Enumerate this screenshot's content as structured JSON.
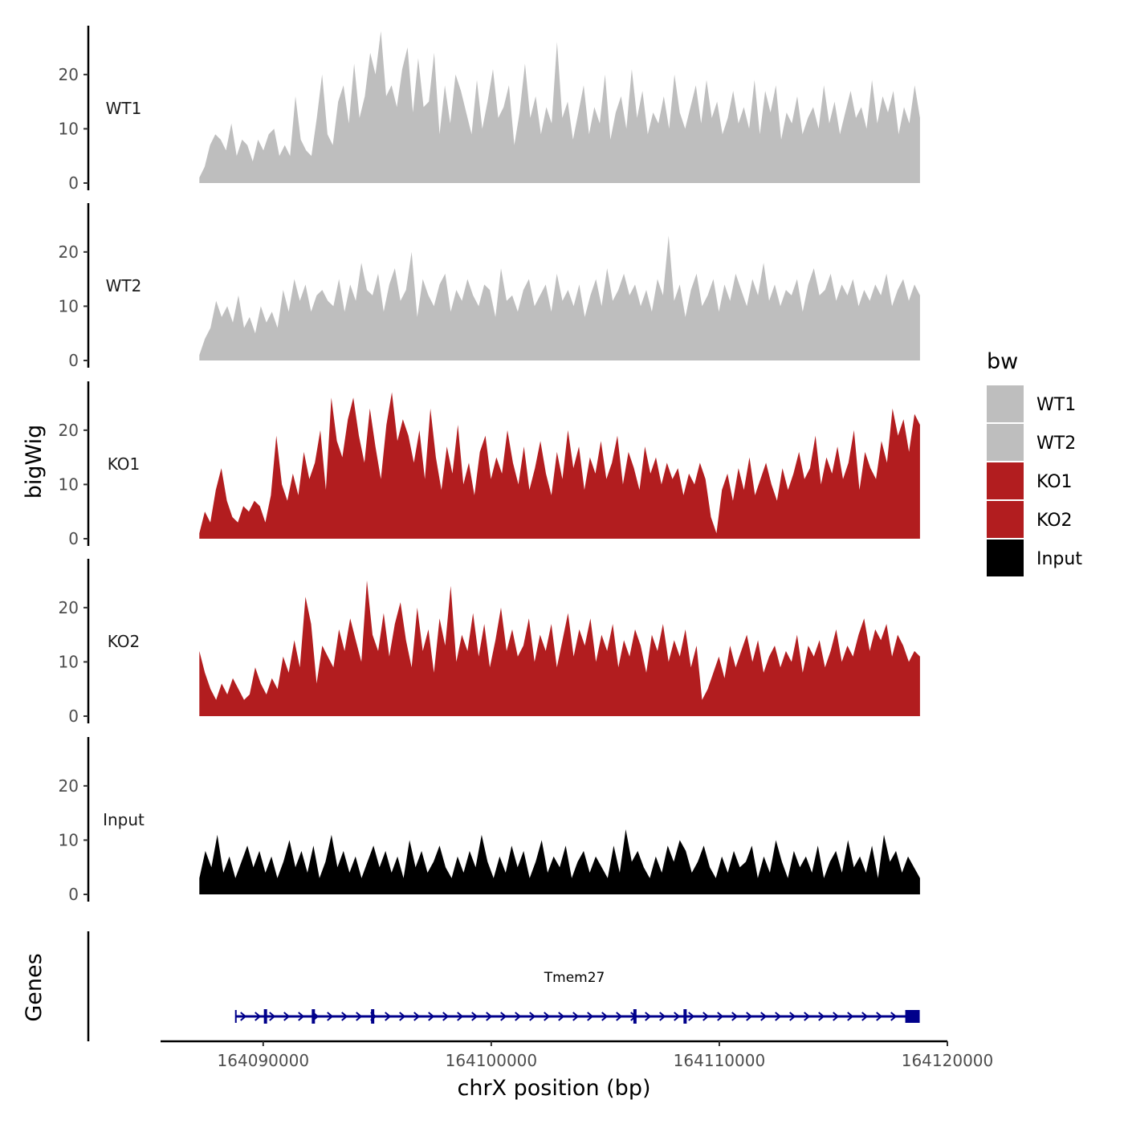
{
  "chart_data": {
    "type": "area",
    "ylabel": "bigWig",
    "xlabel": "chrX position (bp)",
    "xlim": [
      164085500,
      164120000
    ],
    "x_ticks": [
      164090000,
      164100000,
      164110000,
      164120000
    ],
    "x_tick_labels": [
      "164090000",
      "164100000",
      "164110000",
      "164120000"
    ],
    "data_x_range": [
      164087200,
      164118800
    ],
    "ylim": [
      0,
      29
    ],
    "y_ticks": [
      0,
      10,
      20
    ],
    "y_tick_labels": [
      "0",
      "10",
      "20"
    ],
    "legend": {
      "title": "bw",
      "placement": "right",
      "entries": [
        {
          "name": "WT1",
          "color": "#bebebe"
        },
        {
          "name": "WT2",
          "color": "#bebebe"
        },
        {
          "name": "KO1",
          "color": "#b21d1f"
        },
        {
          "name": "KO2",
          "color": "#b21d1f"
        },
        {
          "name": "Input",
          "color": "#000000"
        }
      ]
    },
    "series": [
      {
        "name": "WT1",
        "color": "#bebebe",
        "values": [
          1,
          3,
          7,
          9,
          8,
          6,
          11,
          5,
          8,
          7,
          4,
          8,
          6,
          9,
          10,
          5,
          7,
          5,
          16,
          8,
          6,
          5,
          12,
          20,
          9,
          7,
          15,
          18,
          11,
          22,
          12,
          16,
          24,
          20,
          28,
          16,
          18,
          14,
          21,
          25,
          13,
          23,
          14,
          15,
          24,
          9,
          18,
          11,
          20,
          17,
          13,
          9,
          19,
          10,
          15,
          21,
          12,
          14,
          18,
          7,
          13,
          22,
          12,
          16,
          9,
          14,
          11,
          26,
          12,
          15,
          8,
          13,
          18,
          9,
          14,
          11,
          20,
          8,
          13,
          16,
          10,
          21,
          12,
          17,
          9,
          13,
          11,
          16,
          10,
          20,
          13,
          10,
          14,
          18,
          11,
          19,
          12,
          15,
          9,
          12,
          17,
          11,
          14,
          10,
          19,
          9,
          17,
          13,
          18,
          8,
          13,
          11,
          16,
          9,
          12,
          14,
          10,
          18,
          11,
          15,
          9,
          13,
          17,
          12,
          14,
          10,
          19,
          11,
          16,
          13,
          17,
          9,
          14,
          11,
          18,
          12
        ]
      },
      {
        "name": "WT2",
        "color": "#bebebe",
        "values": [
          1,
          4,
          6,
          11,
          8,
          10,
          7,
          12,
          6,
          8,
          5,
          10,
          7,
          9,
          6,
          13,
          9,
          15,
          11,
          14,
          9,
          12,
          13,
          11,
          10,
          15,
          9,
          14,
          11,
          18,
          13,
          12,
          16,
          9,
          14,
          17,
          11,
          13,
          20,
          8,
          15,
          12,
          10,
          14,
          16,
          9,
          13,
          11,
          15,
          12,
          10,
          14,
          13,
          8,
          17,
          11,
          12,
          9,
          13,
          15,
          10,
          12,
          14,
          9,
          16,
          11,
          13,
          10,
          14,
          8,
          12,
          15,
          10,
          17,
          11,
          13,
          16,
          12,
          14,
          10,
          13,
          9,
          15,
          12,
          23,
          11,
          14,
          8,
          13,
          16,
          10,
          12,
          15,
          9,
          14,
          11,
          16,
          13,
          10,
          15,
          12,
          18,
          11,
          14,
          10,
          13,
          12,
          15,
          9,
          14,
          17,
          12,
          13,
          16,
          11,
          14,
          12,
          15,
          10,
          13,
          11,
          14,
          12,
          16,
          10,
          13,
          15,
          11,
          14,
          12
        ]
      },
      {
        "name": "KO1",
        "color": "#b21d1f",
        "values": [
          1,
          5,
          3,
          9,
          13,
          7,
          4,
          3,
          6,
          5,
          7,
          6,
          3,
          8,
          19,
          10,
          7,
          12,
          8,
          16,
          11,
          14,
          20,
          9,
          26,
          18,
          15,
          22,
          26,
          19,
          14,
          24,
          17,
          11,
          21,
          27,
          18,
          22,
          19,
          14,
          20,
          11,
          24,
          15,
          9,
          17,
          12,
          21,
          10,
          14,
          8,
          16,
          19,
          11,
          15,
          12,
          20,
          14,
          10,
          17,
          9,
          13,
          18,
          12,
          8,
          16,
          11,
          20,
          13,
          17,
          9,
          15,
          12,
          18,
          11,
          14,
          19,
          10,
          16,
          13,
          9,
          17,
          12,
          15,
          10,
          14,
          11,
          13,
          8,
          12,
          10,
          14,
          11,
          4,
          1,
          9,
          12,
          7,
          13,
          9,
          15,
          8,
          11,
          14,
          10,
          7,
          13,
          9,
          12,
          16,
          11,
          13,
          19,
          10,
          15,
          12,
          17,
          11,
          14,
          20,
          9,
          16,
          13,
          11,
          18,
          14,
          24,
          19,
          22,
          16,
          23,
          21
        ]
      },
      {
        "name": "KO2",
        "color": "#b21d1f",
        "values": [
          12,
          8,
          5,
          3,
          6,
          4,
          7,
          5,
          3,
          4,
          9,
          6,
          4,
          7,
          5,
          11,
          8,
          14,
          9,
          22,
          17,
          6,
          13,
          11,
          9,
          16,
          12,
          18,
          14,
          10,
          25,
          15,
          12,
          19,
          11,
          17,
          21,
          14,
          9,
          20,
          12,
          16,
          8,
          18,
          13,
          24,
          10,
          15,
          12,
          19,
          11,
          17,
          9,
          14,
          20,
          12,
          16,
          11,
          13,
          18,
          10,
          15,
          12,
          17,
          9,
          14,
          19,
          11,
          16,
          13,
          18,
          10,
          15,
          12,
          17,
          9,
          14,
          11,
          16,
          13,
          8,
          15,
          12,
          17,
          10,
          14,
          11,
          16,
          9,
          13,
          3,
          5,
          8,
          11,
          7,
          13,
          9,
          12,
          15,
          10,
          14,
          8,
          11,
          13,
          9,
          12,
          10,
          15,
          8,
          13,
          11,
          14,
          9,
          12,
          16,
          10,
          13,
          11,
          15,
          18,
          12,
          16,
          14,
          17,
          11,
          15,
          13,
          10,
          12,
          11
        ]
      },
      {
        "name": "Input",
        "color": "#000000",
        "values": [
          3,
          8,
          5,
          11,
          4,
          7,
          3,
          6,
          9,
          5,
          8,
          4,
          7,
          3,
          6,
          10,
          5,
          8,
          4,
          9,
          3,
          6,
          11,
          5,
          8,
          4,
          7,
          3,
          6,
          9,
          5,
          8,
          4,
          7,
          3,
          10,
          5,
          8,
          4,
          6,
          9,
          5,
          3,
          7,
          4,
          8,
          5,
          11,
          6,
          3,
          7,
          4,
          9,
          5,
          8,
          3,
          6,
          10,
          4,
          7,
          5,
          9,
          3,
          6,
          8,
          4,
          7,
          5,
          3,
          9,
          4,
          12,
          6,
          8,
          5,
          3,
          7,
          4,
          9,
          6,
          10,
          8,
          4,
          6,
          9,
          5,
          3,
          7,
          4,
          8,
          5,
          6,
          9,
          3,
          7,
          4,
          10,
          6,
          3,
          8,
          5,
          7,
          4,
          9,
          3,
          6,
          8,
          4,
          10,
          5,
          7,
          4,
          9,
          3,
          11,
          6,
          8,
          4,
          7,
          5,
          3
        ]
      }
    ],
    "gene_track": {
      "ylabel": "Genes",
      "gene": "Tmem27",
      "start": 164088800,
      "end": 164118500,
      "strand": "+",
      "color": "#00008b",
      "exons": [
        164090100,
        164092200,
        164094800,
        164106300,
        164108500,
        164118400
      ]
    }
  }
}
